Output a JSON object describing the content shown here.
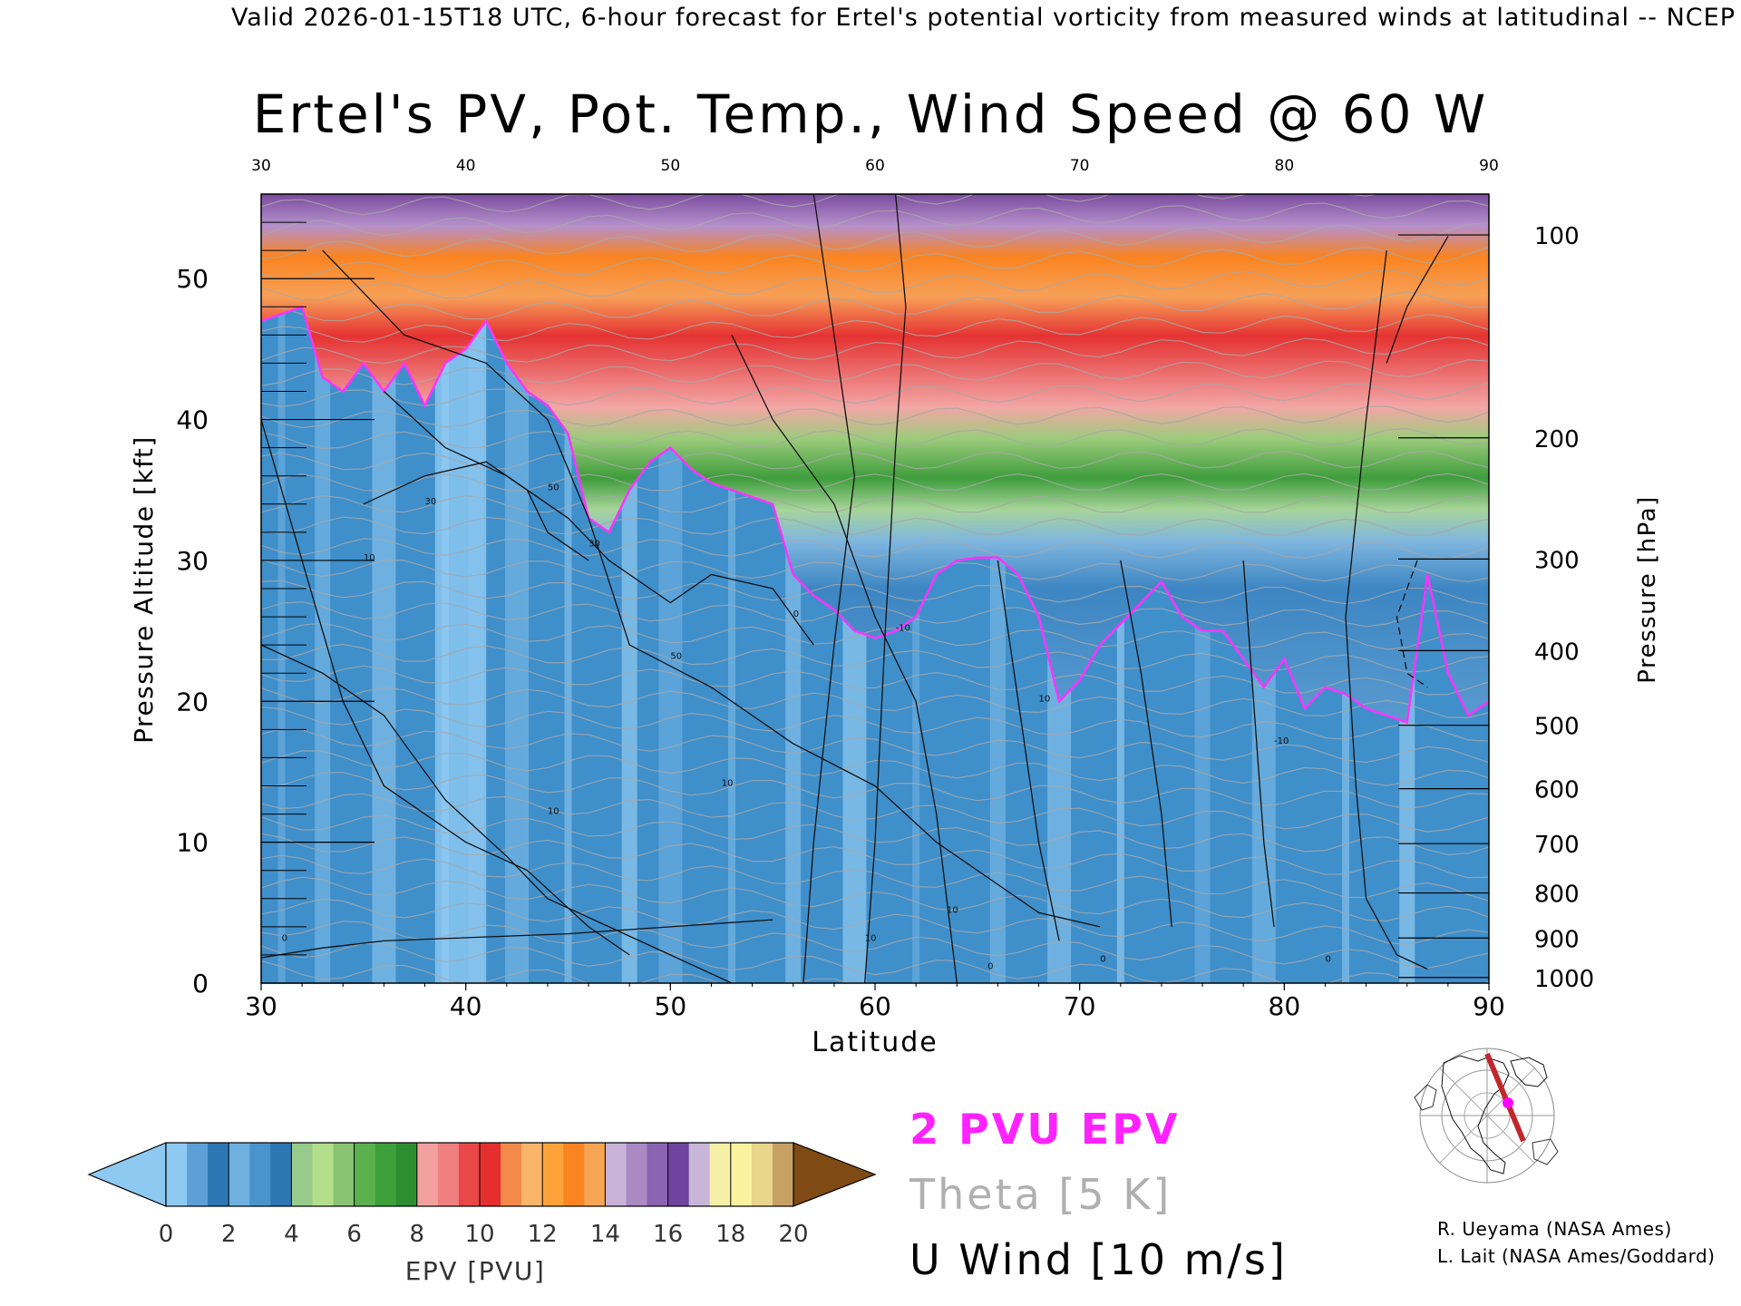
{
  "banner": "Valid 2026-01-15T18 UTC, 6-hour forecast for Ertel's potential vorticity from measured winds at latitudinal -- NCEP",
  "title": "Ertel's PV, Pot. Temp., Wind Speed @ 60 W",
  "colors": {
    "pv_contour": "#ff33ff",
    "theta": "#a8a8a8",
    "wind": "#000000",
    "track": "#c0282d",
    "track_point": "#ff00ff"
  },
  "chart_data": {
    "type": "heatmap",
    "title": "Ertel's PV, Pot. Temp., Wind Speed @ 60 W",
    "xlabel": "Latitude",
    "ylabel": "Pressure Altitude [kft]",
    "y2label": "Pressure [hPa]",
    "xlim": [
      30,
      90
    ],
    "ylim": [
      0,
      56
    ],
    "x_ticks": [
      "30",
      "40",
      "50",
      "60",
      "70",
      "80",
      "90"
    ],
    "x_top_ticks": [
      "30",
      "40",
      "50",
      "60",
      "70",
      "80",
      "90"
    ],
    "y_ticks": [
      "0",
      "10",
      "20",
      "30",
      "40",
      "50"
    ],
    "pressure_ticks": [
      {
        "label": "100",
        "alt": 53.1
      },
      {
        "label": "200",
        "alt": 38.7
      },
      {
        "label": "300",
        "alt": 30.1
      },
      {
        "label": "400",
        "alt": 23.6
      },
      {
        "label": "500",
        "alt": 18.3
      },
      {
        "label": "600",
        "alt": 13.8
      },
      {
        "label": "700",
        "alt": 9.9
      },
      {
        "label": "800",
        "alt": 6.4
      },
      {
        "label": "900",
        "alt": 3.2
      },
      {
        "label": "1000",
        "alt": 0.4
      }
    ],
    "pv_2pvu_contour": {
      "lat": [
        30,
        31,
        32,
        33,
        34,
        35,
        36,
        37,
        38,
        39,
        40,
        41,
        42,
        43,
        44,
        45,
        46,
        47,
        48,
        49,
        50,
        51,
        52,
        53,
        54,
        55,
        56,
        57,
        58,
        59,
        60,
        61,
        62,
        63,
        64,
        65,
        66,
        67,
        68,
        69,
        70,
        71,
        72,
        73,
        74,
        75,
        76,
        77,
        78,
        79,
        80,
        81,
        82,
        83,
        84,
        85,
        86,
        87,
        88,
        89,
        90
      ],
      "alt": [
        47,
        47.5,
        48,
        43,
        42,
        44,
        42,
        44,
        41,
        44,
        45,
        47,
        44,
        42,
        41,
        39,
        33,
        32,
        35,
        37,
        38,
        36.5,
        35.5,
        35,
        34.5,
        34,
        29,
        27.5,
        26.5,
        25,
        24.5,
        25,
        26,
        29,
        30,
        30.2,
        30.2,
        29,
        26,
        20,
        21.5,
        24,
        25.5,
        27,
        28.5,
        26,
        25,
        25,
        23,
        21,
        23,
        19.5,
        21,
        20.5,
        19.5,
        19,
        18.5,
        29,
        22,
        19,
        20
      ]
    },
    "wind_contour_labels": [
      "0",
      "10",
      "30",
      "50",
      "10",
      "30",
      "50",
      "10",
      "0",
      "10",
      "10",
      "-10",
      "0",
      "10",
      "0",
      "-10",
      "0"
    ],
    "colorbar": {
      "label": "EPV [PVU]",
      "ticks": [
        "0",
        "2",
        "4",
        "6",
        "8",
        "10",
        "12",
        "14",
        "16",
        "18",
        "20"
      ],
      "levels": [
        0,
        2,
        4,
        6,
        8,
        10,
        12,
        14,
        16,
        18,
        20
      ],
      "colors": [
        [
          "#6fb0df",
          "#4a94cc",
          "#2c76b4"
        ],
        [
          "#98cc8c",
          "#b3df8c",
          "#8ac472"
        ],
        [
          "#5bb14e",
          "#3da03a",
          "#2d8e2f"
        ],
        [
          "#f2a0a0",
          "#f07f7f",
          "#e84848"
        ],
        [
          "#e52e2e",
          "#f48a4a",
          "#fbb56a"
        ],
        [
          "#fda33a",
          "#fa8420",
          "#f6a555"
        ],
        [
          "#c9b3d8",
          "#ab8ac4",
          "#8a63b2"
        ],
        [
          "#6e44a0",
          "#c8b6d8",
          "#f6efa8"
        ],
        [
          "#fbf2a0",
          "#ead58c",
          "#c7a063"
        ]
      ],
      "under_color": "#8ec9f2",
      "over_color": "#7f4a14"
    }
  },
  "legend": {
    "pv": "2 PVU EPV",
    "theta": "Theta [5 K]",
    "wind": "U Wind [10 m/s]"
  },
  "credits": {
    "line1": "R. Ueyama (NASA Ames)",
    "line2": "L. Lait (NASA Ames/Goddard)"
  }
}
